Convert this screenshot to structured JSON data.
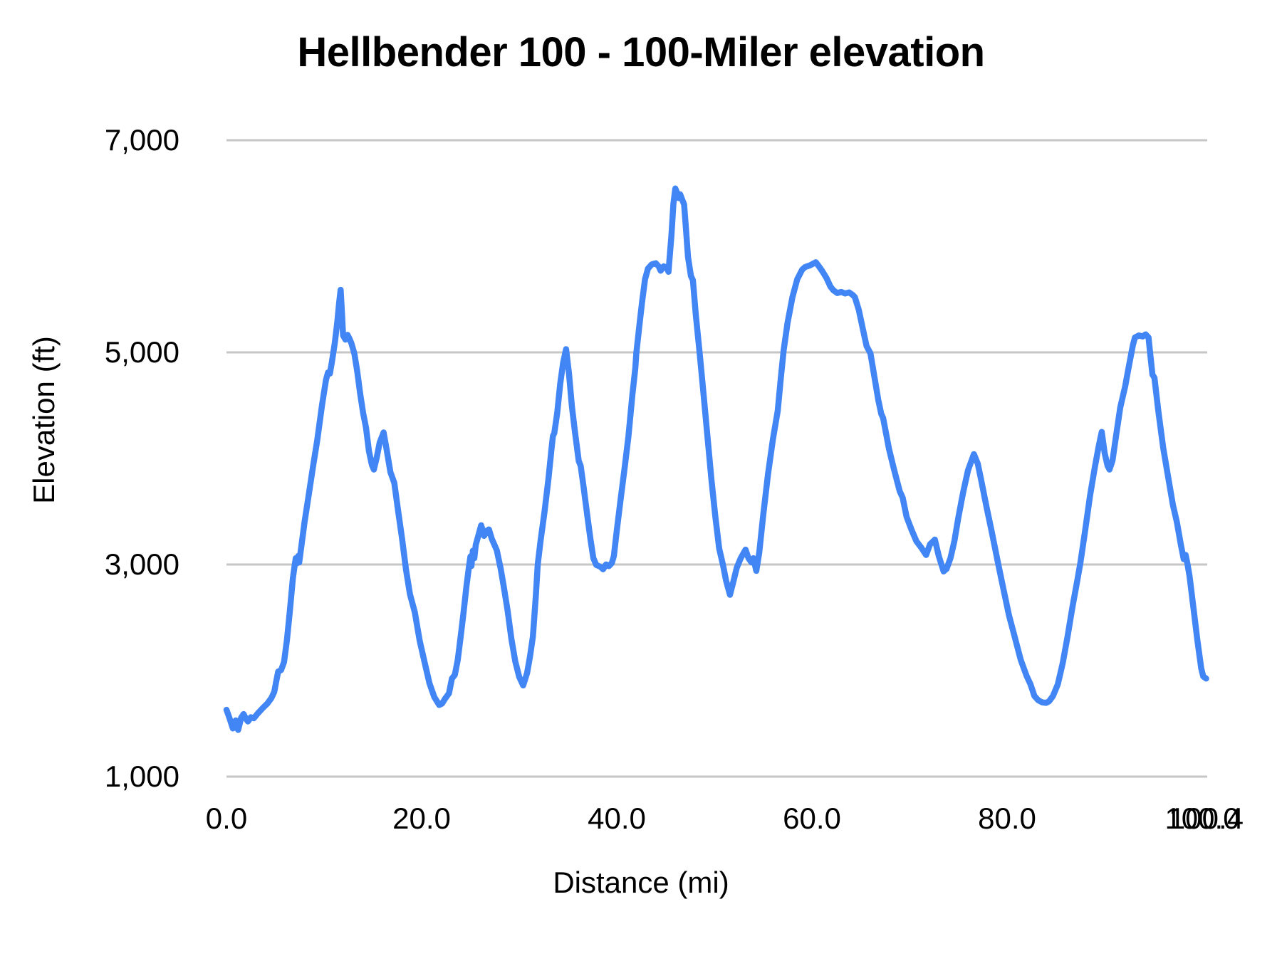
{
  "chart_data": {
    "type": "line",
    "title": "Hellbender 100 - 100-Miler elevation",
    "xlabel": "Distance (mi)",
    "ylabel": "Elevation (ft)",
    "legend": "none",
    "grid": "horizontal",
    "xlim": [
      0,
      100.4
    ],
    "ylim": [
      1000,
      7000
    ],
    "x_ticks": [
      {
        "value": 0,
        "label": "0.0"
      },
      {
        "value": 20,
        "label": "20.0"
      },
      {
        "value": 40,
        "label": "40.0"
      },
      {
        "value": 60,
        "label": "60.0"
      },
      {
        "value": 80,
        "label": "80.0"
      },
      {
        "value": 100,
        "label": "100.0"
      },
      {
        "value": 100.4,
        "label": "100.4"
      }
    ],
    "y_ticks": [
      {
        "value": 1000,
        "label": "1,000"
      },
      {
        "value": 3000,
        "label": "3,000"
      },
      {
        "value": 5000,
        "label": "5,000"
      },
      {
        "value": 7000,
        "label": "7,000"
      }
    ],
    "style": {
      "line_color": "#4285F4",
      "gridline_color": "#c6c6c6",
      "text_color": "#000000",
      "background": "#ffffff"
    },
    "series": [
      {
        "name": "Elevation",
        "points": [
          [
            0,
            1630
          ],
          [
            0.35,
            1540
          ],
          [
            0.65,
            1455
          ],
          [
            0.8,
            1500
          ],
          [
            0.95,
            1530
          ],
          [
            1.05,
            1465
          ],
          [
            1.2,
            1440
          ],
          [
            1.5,
            1555
          ],
          [
            1.75,
            1590
          ],
          [
            2.0,
            1545
          ],
          [
            2.2,
            1520
          ],
          [
            2.5,
            1560
          ],
          [
            2.8,
            1550
          ],
          [
            3.2,
            1595
          ],
          [
            3.7,
            1645
          ],
          [
            4.2,
            1690
          ],
          [
            4.6,
            1740
          ],
          [
            4.9,
            1800
          ],
          [
            5.1,
            1900
          ],
          [
            5.3,
            1990
          ],
          [
            5.6,
            2005
          ],
          [
            5.9,
            2080
          ],
          [
            6.2,
            2290
          ],
          [
            6.5,
            2570
          ],
          [
            6.8,
            2870
          ],
          [
            7.0,
            3000
          ],
          [
            7.1,
            3060
          ],
          [
            7.2,
            3010
          ],
          [
            7.35,
            3080
          ],
          [
            7.45,
            3020
          ],
          [
            7.6,
            3120
          ],
          [
            8.0,
            3400
          ],
          [
            8.4,
            3640
          ],
          [
            8.9,
            3940
          ],
          [
            9.3,
            4170
          ],
          [
            9.8,
            4510
          ],
          [
            10.2,
            4740
          ],
          [
            10.4,
            4810
          ],
          [
            10.6,
            4800
          ],
          [
            10.8,
            4910
          ],
          [
            11.1,
            5090
          ],
          [
            11.35,
            5280
          ],
          [
            11.55,
            5470
          ],
          [
            11.7,
            5590
          ],
          [
            11.85,
            5350
          ],
          [
            11.95,
            5160
          ],
          [
            12.2,
            5120
          ],
          [
            12.4,
            5165
          ],
          [
            12.6,
            5130
          ],
          [
            12.8,
            5085
          ],
          [
            13.1,
            4990
          ],
          [
            13.4,
            4820
          ],
          [
            13.7,
            4610
          ],
          [
            14.0,
            4430
          ],
          [
            14.3,
            4290
          ],
          [
            14.6,
            4070
          ],
          [
            14.9,
            3940
          ],
          [
            15.1,
            3895
          ],
          [
            15.4,
            4010
          ],
          [
            15.7,
            4150
          ],
          [
            16.1,
            4245
          ],
          [
            16.4,
            4090
          ],
          [
            16.8,
            3870
          ],
          [
            17.2,
            3770
          ],
          [
            17.6,
            3500
          ],
          [
            18.0,
            3240
          ],
          [
            18.4,
            2950
          ],
          [
            18.8,
            2720
          ],
          [
            19.3,
            2550
          ],
          [
            19.8,
            2280
          ],
          [
            20.3,
            2080
          ],
          [
            20.8,
            1880
          ],
          [
            21.3,
            1750
          ],
          [
            21.8,
            1675
          ],
          [
            22.1,
            1690
          ],
          [
            22.4,
            1735
          ],
          [
            22.8,
            1785
          ],
          [
            23.1,
            1925
          ],
          [
            23.4,
            1960
          ],
          [
            23.7,
            2100
          ],
          [
            24.0,
            2320
          ],
          [
            24.3,
            2550
          ],
          [
            24.6,
            2800
          ],
          [
            24.85,
            2975
          ],
          [
            25.0,
            3075
          ],
          [
            25.1,
            2985
          ],
          [
            25.25,
            3130
          ],
          [
            25.4,
            3060
          ],
          [
            25.55,
            3185
          ],
          [
            25.8,
            3270
          ],
          [
            26.1,
            3370
          ],
          [
            26.4,
            3270
          ],
          [
            26.7,
            3320
          ],
          [
            26.9,
            3330
          ],
          [
            27.2,
            3240
          ],
          [
            27.7,
            3135
          ],
          [
            28.1,
            2960
          ],
          [
            28.4,
            2800
          ],
          [
            28.8,
            2570
          ],
          [
            29.2,
            2300
          ],
          [
            29.6,
            2085
          ],
          [
            30.0,
            1940
          ],
          [
            30.4,
            1860
          ],
          [
            30.8,
            1975
          ],
          [
            31.1,
            2130
          ],
          [
            31.4,
            2320
          ],
          [
            31.7,
            2700
          ],
          [
            31.9,
            3000
          ],
          [
            32.2,
            3230
          ],
          [
            32.6,
            3500
          ],
          [
            33.0,
            3810
          ],
          [
            33.3,
            4080
          ],
          [
            33.45,
            4210
          ],
          [
            33.6,
            4240
          ],
          [
            33.9,
            4430
          ],
          [
            34.2,
            4700
          ],
          [
            34.5,
            4900
          ],
          [
            34.8,
            5030
          ],
          [
            35.1,
            4800
          ],
          [
            35.4,
            4490
          ],
          [
            35.7,
            4260
          ],
          [
            36.1,
            3975
          ],
          [
            36.3,
            3930
          ],
          [
            36.6,
            3730
          ],
          [
            37.0,
            3445
          ],
          [
            37.3,
            3240
          ],
          [
            37.6,
            3060
          ],
          [
            37.9,
            2995
          ],
          [
            38.3,
            2980
          ],
          [
            38.6,
            2955
          ],
          [
            38.9,
            3000
          ],
          [
            39.2,
            2985
          ],
          [
            39.5,
            3015
          ],
          [
            39.7,
            3080
          ],
          [
            40.0,
            3320
          ],
          [
            40.4,
            3620
          ],
          [
            40.8,
            3910
          ],
          [
            41.2,
            4210
          ],
          [
            41.6,
            4600
          ],
          [
            41.9,
            4850
          ],
          [
            42.0,
            4990
          ],
          [
            42.3,
            5240
          ],
          [
            42.6,
            5480
          ],
          [
            42.9,
            5690
          ],
          [
            43.2,
            5790
          ],
          [
            43.6,
            5830
          ],
          [
            44.0,
            5840
          ],
          [
            44.3,
            5810
          ],
          [
            44.5,
            5770
          ],
          [
            44.8,
            5810
          ],
          [
            45.1,
            5800
          ],
          [
            45.3,
            5760
          ],
          [
            45.6,
            6100
          ],
          [
            45.8,
            6400
          ],
          [
            46.0,
            6545
          ],
          [
            46.2,
            6500
          ],
          [
            46.35,
            6455
          ],
          [
            46.5,
            6490
          ],
          [
            46.7,
            6440
          ],
          [
            46.9,
            6395
          ],
          [
            47.1,
            6150
          ],
          [
            47.3,
            5900
          ],
          [
            47.6,
            5720
          ],
          [
            47.8,
            5680
          ],
          [
            48.1,
            5350
          ],
          [
            48.5,
            4990
          ],
          [
            48.9,
            4600
          ],
          [
            49.3,
            4200
          ],
          [
            49.7,
            3800
          ],
          [
            50.1,
            3450
          ],
          [
            50.5,
            3150
          ],
          [
            50.9,
            2990
          ],
          [
            51.2,
            2850
          ],
          [
            51.6,
            2715
          ],
          [
            51.9,
            2820
          ],
          [
            52.3,
            2970
          ],
          [
            52.7,
            3060
          ],
          [
            53.2,
            3140
          ],
          [
            53.5,
            3060
          ],
          [
            53.8,
            3020
          ],
          [
            54.0,
            3060
          ],
          [
            54.3,
            2940
          ],
          [
            54.6,
            3110
          ],
          [
            55.0,
            3460
          ],
          [
            55.5,
            3850
          ],
          [
            56.0,
            4180
          ],
          [
            56.5,
            4450
          ],
          [
            56.8,
            4750
          ],
          [
            57.1,
            5020
          ],
          [
            57.5,
            5280
          ],
          [
            58.0,
            5520
          ],
          [
            58.5,
            5690
          ],
          [
            59.0,
            5780
          ],
          [
            59.3,
            5805
          ],
          [
            59.8,
            5820
          ],
          [
            60.4,
            5850
          ],
          [
            60.8,
            5800
          ],
          [
            61.1,
            5760
          ],
          [
            61.5,
            5700
          ],
          [
            61.9,
            5620
          ],
          [
            62.2,
            5585
          ],
          [
            62.6,
            5560
          ],
          [
            63.0,
            5570
          ],
          [
            63.4,
            5555
          ],
          [
            63.8,
            5565
          ],
          [
            64.2,
            5540
          ],
          [
            64.4,
            5520
          ],
          [
            64.8,
            5400
          ],
          [
            65.2,
            5230
          ],
          [
            65.6,
            5060
          ],
          [
            66.0,
            4990
          ],
          [
            66.4,
            4770
          ],
          [
            66.8,
            4550
          ],
          [
            67.1,
            4420
          ],
          [
            67.3,
            4380
          ],
          [
            67.9,
            4090
          ],
          [
            68.4,
            3900
          ],
          [
            69.0,
            3690
          ],
          [
            69.3,
            3630
          ],
          [
            69.7,
            3450
          ],
          [
            70.2,
            3330
          ],
          [
            70.7,
            3220
          ],
          [
            71.2,
            3160
          ],
          [
            71.7,
            3090
          ],
          [
            72.1,
            3190
          ],
          [
            72.6,
            3235
          ],
          [
            73.0,
            3080
          ],
          [
            73.5,
            2935
          ],
          [
            73.8,
            2960
          ],
          [
            74.2,
            3060
          ],
          [
            74.6,
            3220
          ],
          [
            75.0,
            3440
          ],
          [
            75.5,
            3680
          ],
          [
            76.0,
            3890
          ],
          [
            76.6,
            4040
          ],
          [
            77.0,
            3950
          ],
          [
            77.4,
            3770
          ],
          [
            77.9,
            3540
          ],
          [
            78.4,
            3320
          ],
          [
            79.1,
            3000
          ],
          [
            79.6,
            2780
          ],
          [
            80.2,
            2520
          ],
          [
            80.8,
            2310
          ],
          [
            81.4,
            2100
          ],
          [
            82.0,
            1950
          ],
          [
            82.4,
            1870
          ],
          [
            82.8,
            1760
          ],
          [
            83.2,
            1720
          ],
          [
            83.6,
            1700
          ],
          [
            84.0,
            1695
          ],
          [
            84.3,
            1710
          ],
          [
            84.7,
            1760
          ],
          [
            85.2,
            1870
          ],
          [
            85.7,
            2070
          ],
          [
            86.2,
            2320
          ],
          [
            86.7,
            2600
          ],
          [
            87.2,
            2850
          ],
          [
            87.5,
            3010
          ],
          [
            88.0,
            3320
          ],
          [
            88.5,
            3650
          ],
          [
            89.0,
            3920
          ],
          [
            89.4,
            4120
          ],
          [
            89.7,
            4250
          ],
          [
            90.0,
            4050
          ],
          [
            90.3,
            3930
          ],
          [
            90.5,
            3895
          ],
          [
            90.8,
            3980
          ],
          [
            91.2,
            4230
          ],
          [
            91.6,
            4480
          ],
          [
            92.1,
            4680
          ],
          [
            92.5,
            4880
          ],
          [
            92.9,
            5070
          ],
          [
            93.1,
            5140
          ],
          [
            93.5,
            5160
          ],
          [
            93.9,
            5150
          ],
          [
            94.2,
            5170
          ],
          [
            94.5,
            5140
          ],
          [
            94.7,
            4960
          ],
          [
            94.9,
            4790
          ],
          [
            95.1,
            4760
          ],
          [
            95.5,
            4450
          ],
          [
            96.0,
            4100
          ],
          [
            96.5,
            3830
          ],
          [
            97.0,
            3560
          ],
          [
            97.4,
            3400
          ],
          [
            97.8,
            3190
          ],
          [
            98.1,
            3050
          ],
          [
            98.3,
            3090
          ],
          [
            98.5,
            3000
          ],
          [
            98.7,
            2890
          ],
          [
            99.1,
            2590
          ],
          [
            99.5,
            2290
          ],
          [
            99.9,
            2020
          ],
          [
            100.1,
            1945
          ],
          [
            100.4,
            1925
          ]
        ]
      }
    ]
  }
}
